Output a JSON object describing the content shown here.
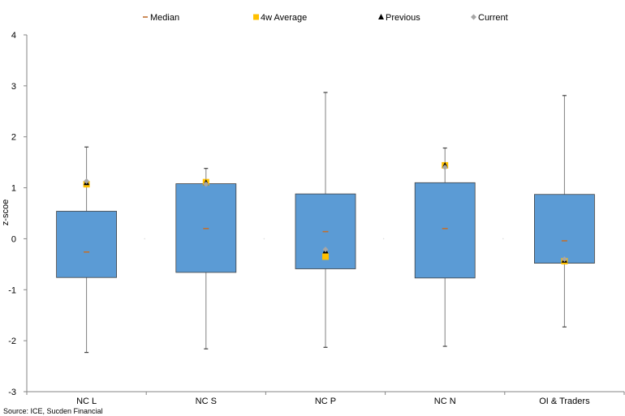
{
  "chart_data": {
    "type": "boxplot",
    "ylabel": "z-scoe",
    "ylim": [
      -3,
      4
    ],
    "yticks": [
      -3,
      -2,
      -1,
      0,
      1,
      2,
      3,
      4
    ],
    "categories": [
      "NC L",
      "NC S",
      "NC P",
      "NC N",
      "OI & Traders"
    ],
    "boxes": [
      {
        "category": "NC L",
        "min": -2.23,
        "q1": -0.76,
        "median": -0.26,
        "q3": 0.54,
        "max": 1.8,
        "avg4w": 1.07,
        "previous": 1.1,
        "current": 1.13
      },
      {
        "category": "NC S",
        "min": -2.16,
        "q1": -0.66,
        "median": 0.2,
        "q3": 1.08,
        "max": 1.38,
        "avg4w": 1.11,
        "previous": 1.1,
        "current": 1.07
      },
      {
        "category": "NC P",
        "min": -2.13,
        "q1": -0.59,
        "median": 0.14,
        "q3": 0.88,
        "max": 2.87,
        "avg4w": -0.35,
        "previous": -0.24,
        "current": -0.21
      },
      {
        "category": "NC N",
        "min": -2.11,
        "q1": -0.77,
        "median": 0.2,
        "q3": 1.1,
        "max": 1.78,
        "avg4w": 1.44,
        "previous": 1.44,
        "current": 1.4
      },
      {
        "category": "OI & Traders",
        "min": -1.73,
        "q1": -0.48,
        "median": -0.04,
        "q3": 0.87,
        "max": 2.81,
        "avg4w": -0.44,
        "previous": -0.42,
        "current": -0.4
      }
    ],
    "legend": {
      "position": "top",
      "items": [
        {
          "label": "Median",
          "symbol": "dash",
          "color": "#c07030"
        },
        {
          "label": "4w Average",
          "symbol": "square",
          "color": "#ffc000"
        },
        {
          "label": "Previous",
          "symbol": "triangle",
          "color": "#000000"
        },
        {
          "label": "Current",
          "symbol": "diamond",
          "color": "#a6a6a6"
        }
      ]
    },
    "colors": {
      "box_fill": "#5b9bd5",
      "box_stroke": "#404040",
      "whisker": "#808080"
    },
    "grid": false
  },
  "source": "Source: ICE, Sucden Financial"
}
